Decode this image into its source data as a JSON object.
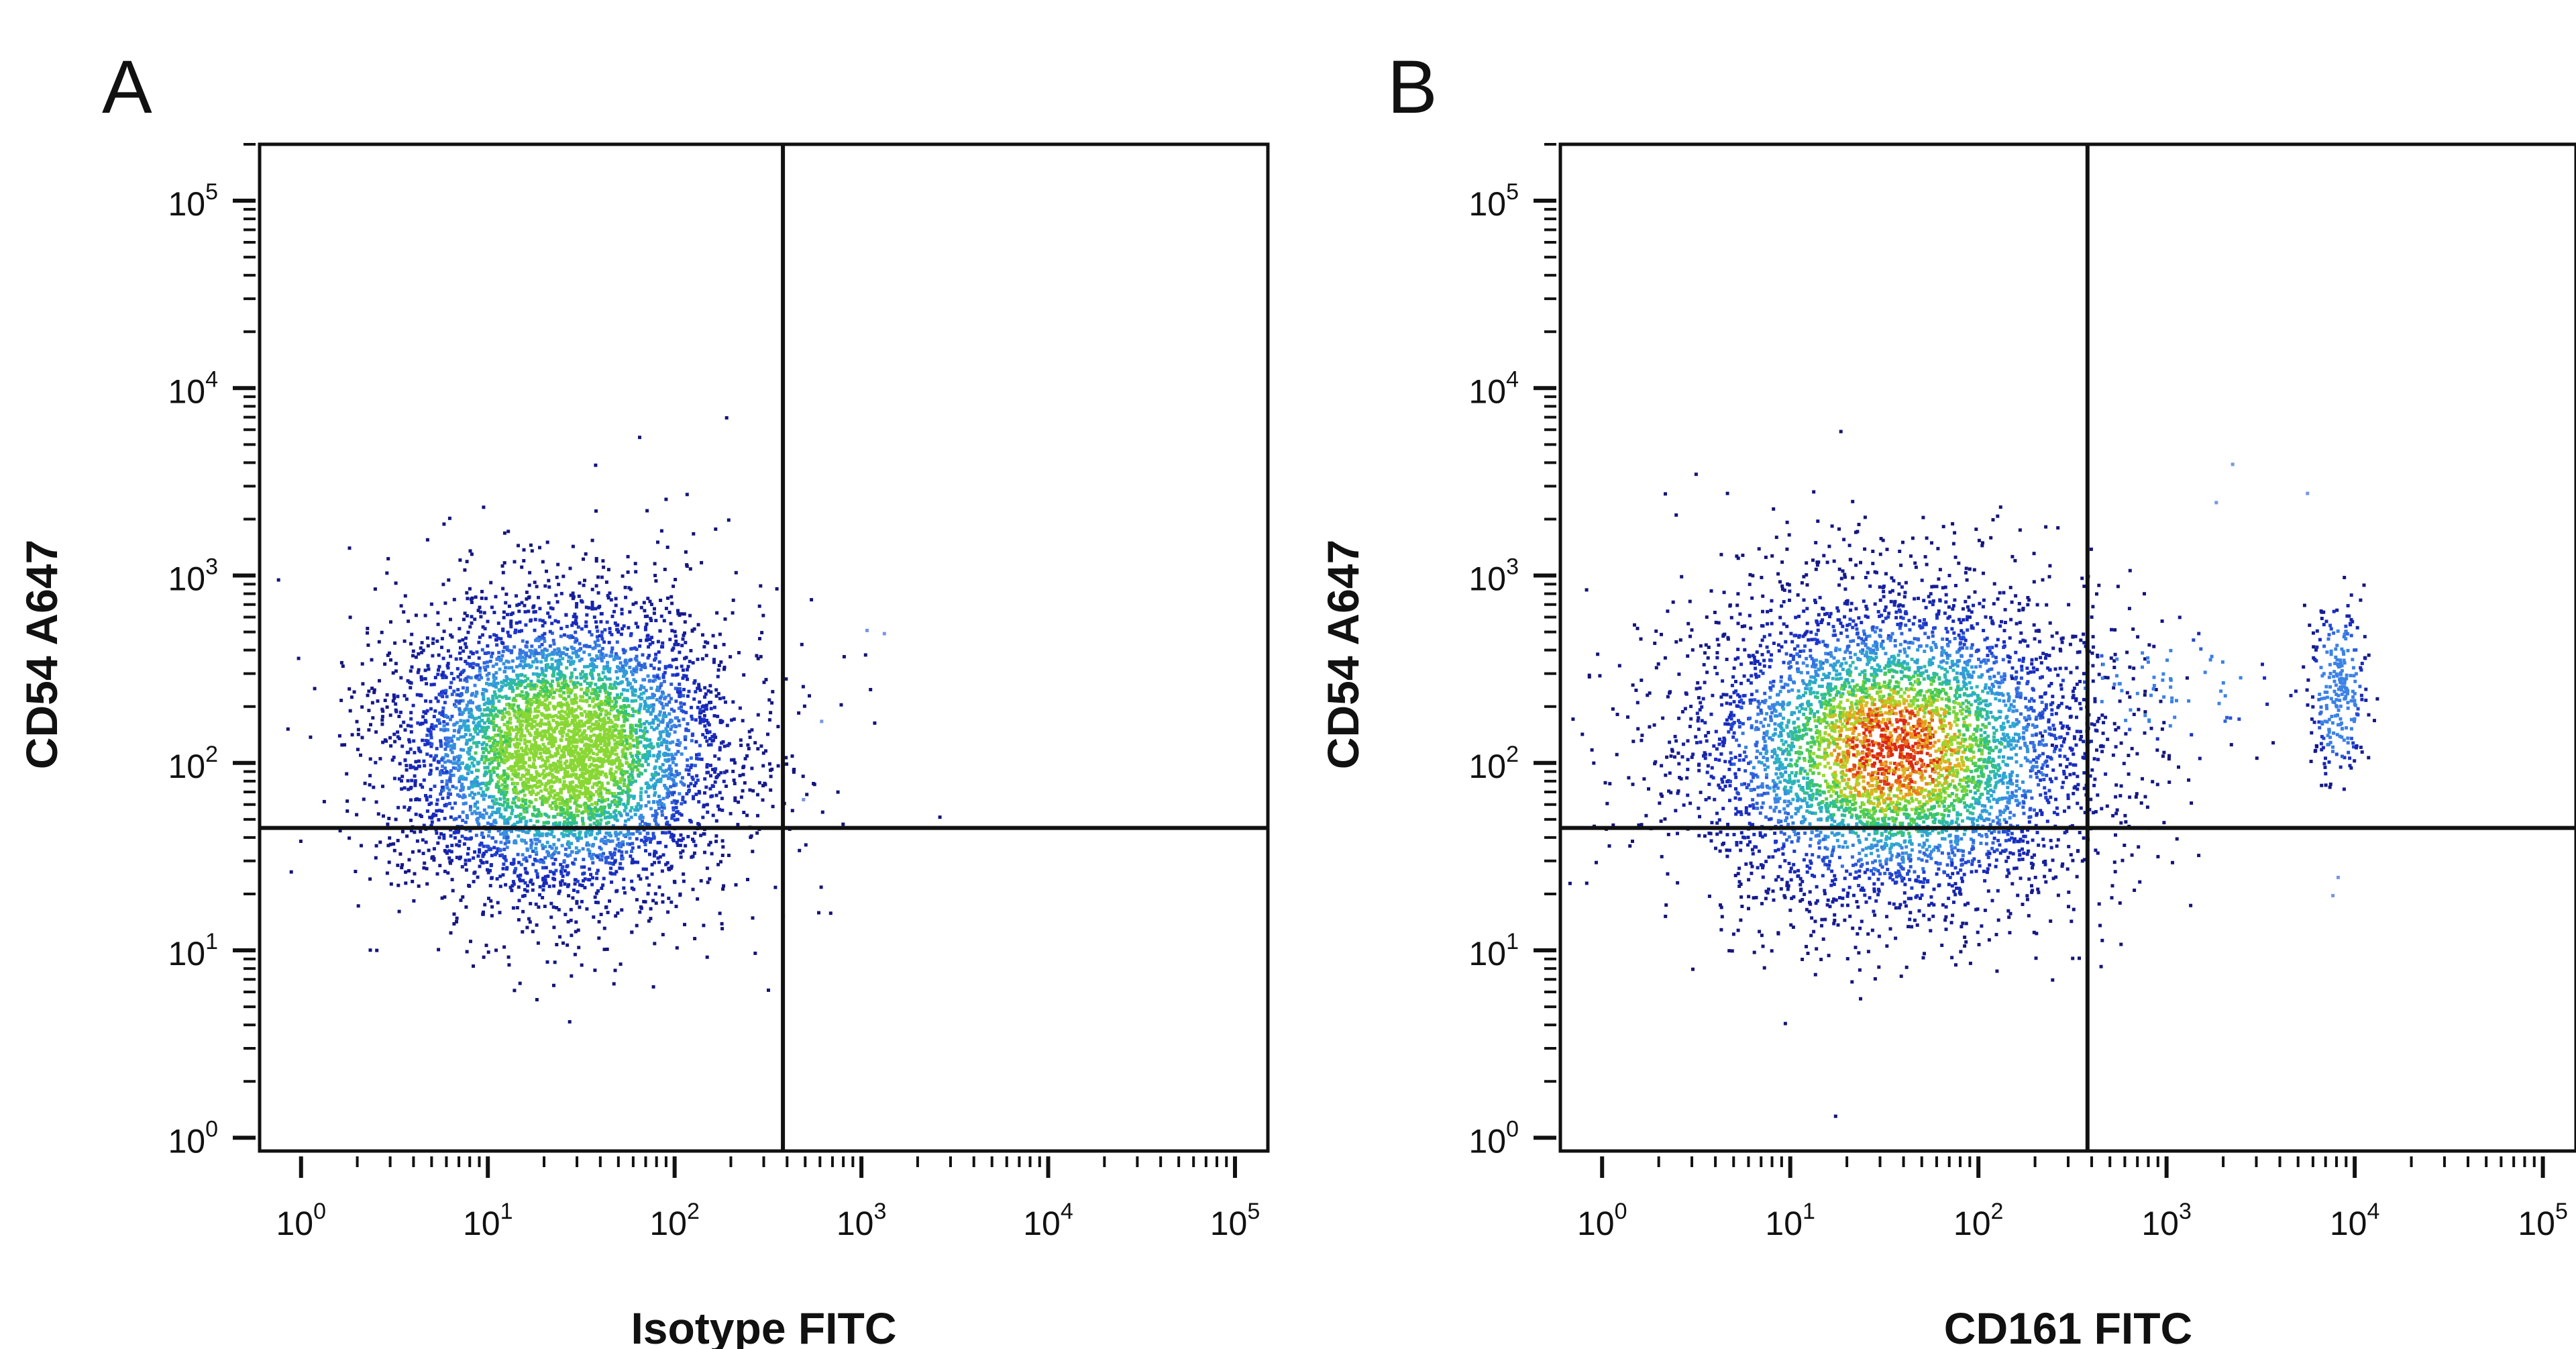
{
  "chart_data": [
    {
      "type": "scatter",
      "panel_label": "A",
      "xlabel": "Isotype FITC",
      "ylabel": "CD54 A647",
      "xscale": "log",
      "yscale": "log",
      "xlim": [
        0.6,
        150000
      ],
      "ylim": [
        0.85,
        200000
      ],
      "x_ticks": [
        {
          "base": "10",
          "exp": "0",
          "value": 1
        },
        {
          "base": "10",
          "exp": "1",
          "value": 10
        },
        {
          "base": "10",
          "exp": "2",
          "value": 100
        },
        {
          "base": "10",
          "exp": "3",
          "value": 1000
        },
        {
          "base": "10",
          "exp": "4",
          "value": 10000
        },
        {
          "base": "10",
          "exp": "5",
          "value": 100000
        }
      ],
      "y_ticks": [
        {
          "base": "10",
          "exp": "0",
          "value": 1
        },
        {
          "base": "10",
          "exp": "1",
          "value": 10
        },
        {
          "base": "10",
          "exp": "2",
          "value": 100
        },
        {
          "base": "10",
          "exp": "3",
          "value": 1000
        },
        {
          "base": "10",
          "exp": "4",
          "value": 10000
        },
        {
          "base": "10",
          "exp": "5",
          "value": 100000
        }
      ],
      "quadrant_gate": {
        "x": 380,
        "y": 45
      },
      "grid": false,
      "colormap": "density (blue to green to red)",
      "populations": [
        {
          "center_x": 25,
          "center_y": 120,
          "spread_x_decades": 0.42,
          "spread_y_decades": 0.38,
          "relative_size": 1.0,
          "peak_color": "green"
        }
      ],
      "outliers": [
        [
          1300,
          500
        ],
        [
          1050,
          520
        ],
        [
          600,
          170
        ],
        [
          480,
          65
        ]
      ]
    },
    {
      "type": "scatter",
      "panel_label": "B",
      "xlabel": "CD161 FITC",
      "ylabel": "CD54 A647",
      "xscale": "log",
      "yscale": "log",
      "xlim": [
        0.6,
        150000
      ],
      "ylim": [
        0.85,
        200000
      ],
      "x_ticks": [
        {
          "base": "10",
          "exp": "0",
          "value": 1
        },
        {
          "base": "10",
          "exp": "1",
          "value": 10
        },
        {
          "base": "10",
          "exp": "2",
          "value": 100
        },
        {
          "base": "10",
          "exp": "3",
          "value": 1000
        },
        {
          "base": "10",
          "exp": "4",
          "value": 10000
        },
        {
          "base": "10",
          "exp": "5",
          "value": 100000
        }
      ],
      "y_ticks": [
        {
          "base": "10",
          "exp": "0",
          "value": 1
        },
        {
          "base": "10",
          "exp": "1",
          "value": 10
        },
        {
          "base": "10",
          "exp": "2",
          "value": 100
        },
        {
          "base": "10",
          "exp": "3",
          "value": 1000
        },
        {
          "base": "10",
          "exp": "4",
          "value": 10000
        },
        {
          "base": "10",
          "exp": "5",
          "value": 100000
        }
      ],
      "quadrant_gate": {
        "x": 380,
        "y": 45
      },
      "grid": false,
      "colormap": "density (blue to green to red)",
      "populations": [
        {
          "center_x": 35,
          "center_y": 120,
          "spread_x_decades": 0.5,
          "spread_y_decades": 0.4,
          "relative_size": 1.0,
          "peak_color": "red"
        },
        {
          "center_x": 8000,
          "center_y": 250,
          "spread_x_decades": 0.07,
          "spread_y_decades": 0.22,
          "relative_size": 0.05,
          "peak_color": "blue"
        },
        {
          "center_x": 1000,
          "center_y": 260,
          "spread_x_decades": 0.3,
          "spread_y_decades": 0.15,
          "relative_size": 0.015,
          "peak_color": "blue"
        }
      ],
      "outliers": [
        [
          2200,
          4000
        ],
        [
          1800,
          2500
        ],
        [
          5500,
          2800
        ],
        [
          7500,
          20
        ],
        [
          8000,
          25
        ]
      ]
    }
  ]
}
